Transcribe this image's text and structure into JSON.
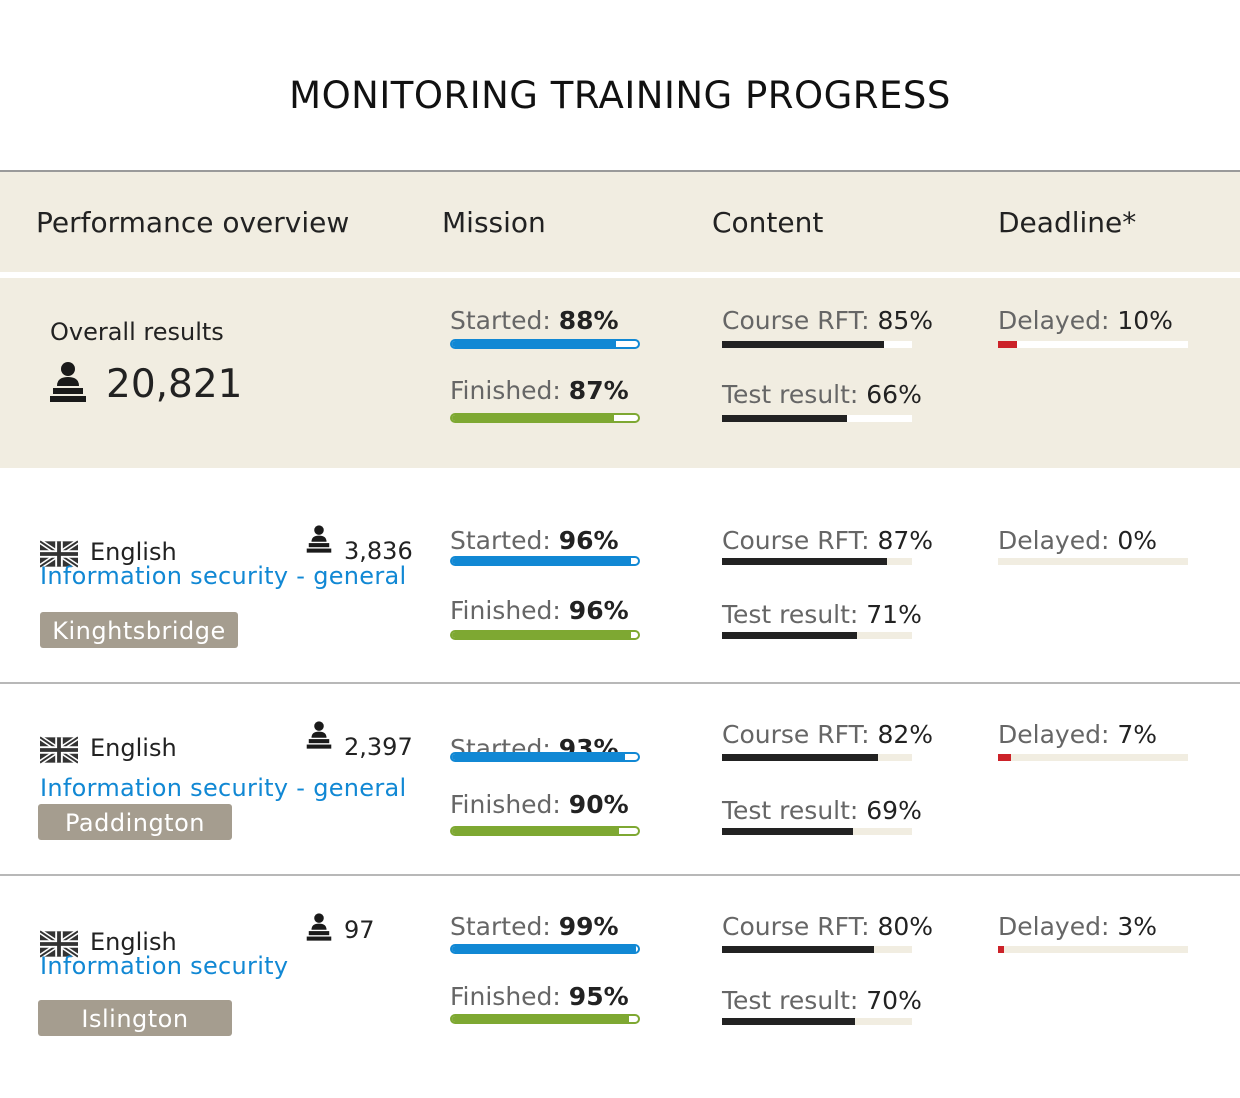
{
  "title": "MONITORING TRAINING PROGRESS",
  "header": {
    "overview": "Performance overview",
    "mission": "Mission",
    "content": "Content",
    "deadline": "Deadline*"
  },
  "overall": {
    "label": "Overall results",
    "count": "20,821",
    "started_label": "Started:",
    "started": "88%",
    "started_value": 88,
    "finished_label": "Finished:",
    "finished": "87%",
    "finished_value": 87,
    "rft_label": "Course RFT:",
    "rft": "85%",
    "rft_value": 85,
    "test_label": "Test result:",
    "test": "66%",
    "test_value": 66,
    "delayed_label": "Delayed:",
    "delayed": "10%",
    "delayed_value": 10
  },
  "rows": [
    {
      "language": "English",
      "count": "3,836",
      "course": "Information security - general",
      "location": "Kinghtsbridge",
      "started_label": "Started:",
      "started": "96%",
      "started_value": 96,
      "finished_label": "Finished:",
      "finished": "96%",
      "finished_value": 96,
      "rft_label": "Course RFT:",
      "rft": "87%",
      "rft_value": 87,
      "test_label": "Test result:",
      "test": "71%",
      "test_value": 71,
      "delayed_label": "Delayed:",
      "delayed": "0%",
      "delayed_value": 0
    },
    {
      "language": "English",
      "count": "2,397",
      "course": "Information security - general",
      "location": "Paddington",
      "started_label": "Started:",
      "started": "93%",
      "started_value": 93,
      "finished_label": "Finished:",
      "finished": "90%",
      "finished_value": 90,
      "rft_label": "Course RFT:",
      "rft": "82%",
      "rft_value": 82,
      "test_label": "Test result:",
      "test": "69%",
      "test_value": 69,
      "delayed_label": "Delayed:",
      "delayed": "7%",
      "delayed_value": 7
    },
    {
      "language": "English",
      "count": "97",
      "course": "Information security",
      "location": "Islington",
      "started_label": "Started:",
      "started": "99%",
      "started_value": 99,
      "finished_label": "Finished:",
      "finished": "95%",
      "finished_value": 95,
      "rft_label": "Course RFT:",
      "rft": "80%",
      "rft_value": 80,
      "test_label": "Test result:",
      "test": "70%",
      "test_value": 70,
      "delayed_label": "Delayed:",
      "delayed": "3%",
      "delayed_value": 3
    }
  ],
  "colors": {
    "accent_blue": "#1188d4",
    "accent_green": "#7ea832",
    "delay_red": "#cc2229",
    "band_beige": "#f1ede1",
    "tag_taupe": "#a59d8f"
  },
  "icons": {
    "flag": "uk-flag-icon",
    "person": "person-icon"
  }
}
